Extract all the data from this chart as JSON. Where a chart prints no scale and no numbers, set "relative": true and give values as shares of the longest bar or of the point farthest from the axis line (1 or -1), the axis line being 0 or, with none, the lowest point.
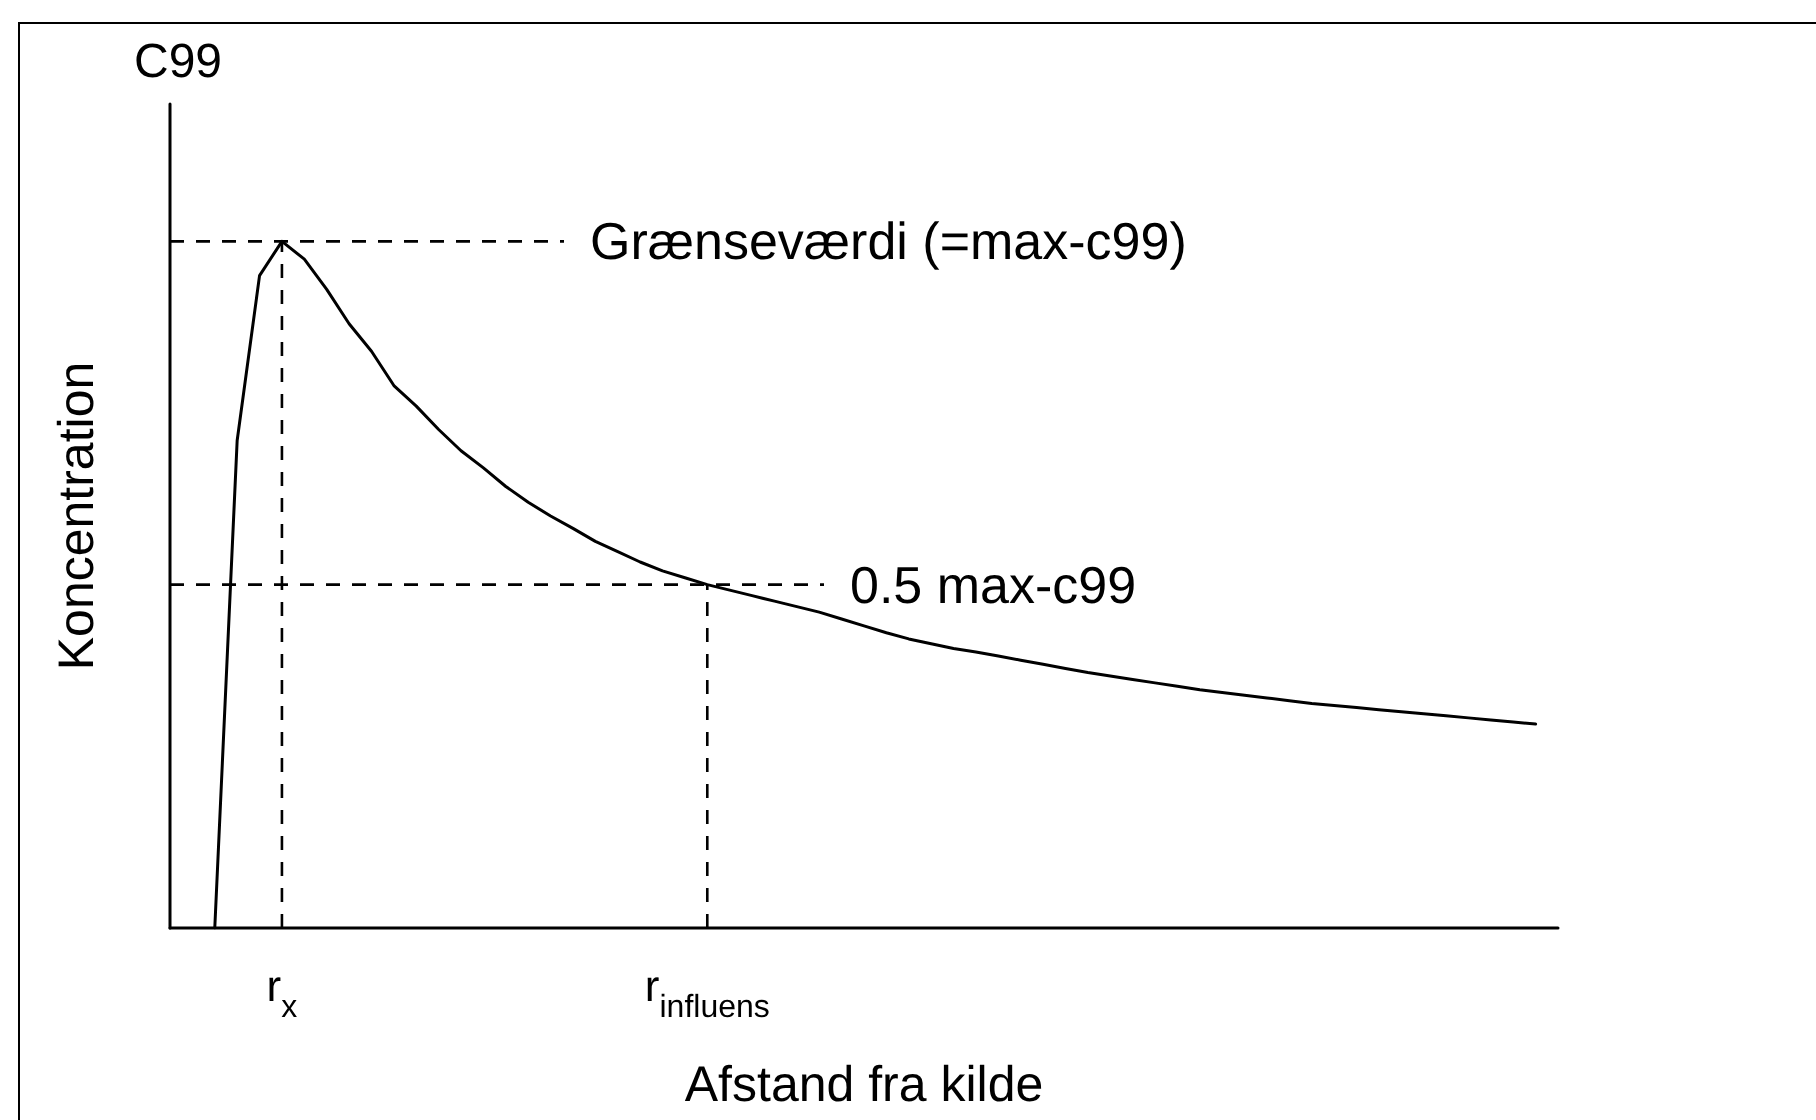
{
  "chart_data": {
    "type": "line",
    "title": "C99",
    "xlabel": "Afstand fra kilde",
    "ylabel": "Koncentration",
    "relative": true,
    "categories": [
      null,
      null,
      null,
      null,
      null,
      "r$_{x}$",
      null,
      null,
      null,
      null,
      null,
      null,
      null,
      null,
      null,
      null,
      null,
      null,
      null,
      null,
      null,
      null,
      null,
      null,
      "r$_{influens}$",
      null,
      null,
      null,
      null,
      null,
      null,
      null,
      null,
      null,
      null,
      null,
      null,
      null,
      null,
      null,
      null,
      null,
      null,
      null,
      null,
      null,
      null,
      null,
      null,
      null,
      null,
      null,
      null,
      null,
      null,
      null,
      null,
      null,
      null,
      null,
      null,
      null,
      null
    ],
    "series": [
      {
        "color": "#000000",
        "values": [
          null,
          null,
          0,
          0.71,
          0.95,
          1,
          0.974,
          0.93,
          0.88,
          0.84,
          0.79,
          0.76,
          0.726,
          0.695,
          0.67,
          0.643,
          0.62,
          0.6,
          0.582,
          0.563,
          0.548,
          0.533,
          0.52,
          0.51,
          0.5,
          0.492,
          0.484,
          0.476,
          0.468,
          0.46,
          0.45,
          0.44,
          0.43,
          0.421,
          0.414,
          0.407,
          0.402,
          0.396,
          0.39,
          0.384,
          0.378,
          0.372,
          0.367,
          0.362,
          0.357,
          0.352,
          0.347,
          0.343,
          0.339,
          0.335,
          0.331,
          0.327,
          0.324,
          0.321,
          0.318,
          0.315,
          0.312,
          0.309,
          0.306,
          0.303,
          0.3,
          0.297,
          null
        ]
      }
    ],
    "ref_lines": [
      {
        "axis": "y",
        "value": 1,
        "label": "Grænseværdi (=max-c99)",
        "color": "#000000",
        "line_style": "dashed"
      },
      {
        "axis": "y",
        "value": 0.5,
        "label": "0.5 max-c99",
        "color": "#000000",
        "line_style": "dashed"
      },
      {
        "axis": "x",
        "value": "r$_{x}$",
        "color": "#000000",
        "line_style": "dashed"
      },
      {
        "axis": "x",
        "value": "r$_{influens}$",
        "color": "#000000",
        "line_style": "dashed"
      }
    ],
    "marker": "none",
    "line_style": "solid",
    "grid": false
  }
}
